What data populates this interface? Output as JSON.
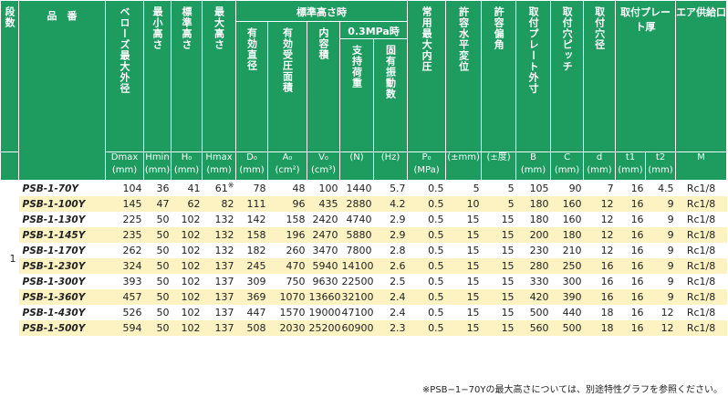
{
  "header": {
    "stage": "段数",
    "model": "品　番",
    "dmax": "ベローズ最大外径",
    "hmin": "最小高さ",
    "h0": "標準高さ",
    "hmax": "最大高さ",
    "std_group": "標準高さ時",
    "d0": "有効直径",
    "a0": "有効受圧面積",
    "v0": "内容積",
    "mpa_group": "0.3MPa時",
    "load": "支持荷重",
    "freq": "固有振動数",
    "pressure": "常用最大内圧",
    "h_disp": "許容水平変位",
    "angle": "許容偏角",
    "plate_outer": "取付プレート外寸",
    "pitch": "取付穴ピッチ",
    "hole": "取付穴径",
    "thickness": "取付プレート厚",
    "air": "エア供給口"
  },
  "units": {
    "dmax": [
      "Dmax",
      "(mm)"
    ],
    "hmin": [
      "Hmin",
      "(mm)"
    ],
    "h0": [
      "H₀",
      "(mm)"
    ],
    "hmax": [
      "Hmax",
      "(mm)"
    ],
    "d0": [
      "D₀",
      "(mm)"
    ],
    "a0": [
      "A₀",
      "(cm²)"
    ],
    "v0": [
      "V₀",
      "(cm³)"
    ],
    "load": [
      "",
      "(N)"
    ],
    "freq": [
      "",
      "(Hz)"
    ],
    "pressure": [
      "P₀",
      "(MPa)"
    ],
    "h_disp": [
      "",
      "(±mm)"
    ],
    "angle": [
      "",
      "(±度)"
    ],
    "plate_outer": [
      "B",
      "(mm)"
    ],
    "pitch": [
      "C",
      "(mm)"
    ],
    "hole": [
      "d",
      "(mm)"
    ],
    "t1": [
      "t1",
      "(mm)"
    ],
    "t2": [
      "t2",
      "(mm)"
    ],
    "air": [
      "",
      "M"
    ]
  },
  "stage_value": "1",
  "rows": [
    {
      "model": "PSB-1-70Y",
      "dmax": "104",
      "hmin": "36",
      "h0": "41",
      "hmax": "61",
      "hmax_mark": "※",
      "d0": "78",
      "a0": "48",
      "v0": "100",
      "load": "1440",
      "freq": "5.7",
      "p": "0.5",
      "hd": "5",
      "ang": "5",
      "b": "105",
      "c": "90",
      "d": "7",
      "t1": "16",
      "t2": "4.5",
      "m": "Rc1/8"
    },
    {
      "model": "PSB-1-100Y",
      "dmax": "145",
      "hmin": "47",
      "h0": "62",
      "hmax": "82",
      "hmax_mark": "",
      "d0": "111",
      "a0": "96",
      "v0": "435",
      "load": "2880",
      "freq": "4.2",
      "p": "0.5",
      "hd": "10",
      "ang": "5",
      "b": "180",
      "c": "160",
      "d": "12",
      "t1": "16",
      "t2": "9",
      "m": "Rc1/8"
    },
    {
      "model": "PSB-1-130Y",
      "dmax": "225",
      "hmin": "50",
      "h0": "102",
      "hmax": "132",
      "hmax_mark": "",
      "d0": "142",
      "a0": "158",
      "v0": "2420",
      "load": "4740",
      "freq": "2.9",
      "p": "0.5",
      "hd": "15",
      "ang": "15",
      "b": "180",
      "c": "160",
      "d": "12",
      "t1": "16",
      "t2": "9",
      "m": "Rc1/8"
    },
    {
      "model": "PSB-1-145Y",
      "dmax": "235",
      "hmin": "50",
      "h0": "102",
      "hmax": "132",
      "hmax_mark": "",
      "d0": "158",
      "a0": "196",
      "v0": "2470",
      "load": "5880",
      "freq": "2.9",
      "p": "0.5",
      "hd": "15",
      "ang": "15",
      "b": "200",
      "c": "180",
      "d": "12",
      "t1": "16",
      "t2": "9",
      "m": "Rc1/8"
    },
    {
      "model": "PSB-1-170Y",
      "dmax": "262",
      "hmin": "50",
      "h0": "102",
      "hmax": "132",
      "hmax_mark": "",
      "d0": "182",
      "a0": "260",
      "v0": "3470",
      "load": "7800",
      "freq": "2.8",
      "p": "0.5",
      "hd": "15",
      "ang": "15",
      "b": "230",
      "c": "210",
      "d": "12",
      "t1": "16",
      "t2": "9",
      "m": "Rc1/8"
    },
    {
      "model": "PSB-1-230Y",
      "dmax": "324",
      "hmin": "50",
      "h0": "102",
      "hmax": "137",
      "hmax_mark": "",
      "d0": "245",
      "a0": "470",
      "v0": "5940",
      "load": "14100",
      "freq": "2.6",
      "p": "0.5",
      "hd": "15",
      "ang": "15",
      "b": "280",
      "c": "250",
      "d": "16",
      "t1": "16",
      "t2": "9",
      "m": "Rc1/8"
    },
    {
      "model": "PSB-1-300Y",
      "dmax": "393",
      "hmin": "50",
      "h0": "102",
      "hmax": "137",
      "hmax_mark": "",
      "d0": "309",
      "a0": "750",
      "v0": "9630",
      "load": "22500",
      "freq": "2.5",
      "p": "0.5",
      "hd": "15",
      "ang": "15",
      "b": "330",
      "c": "300",
      "d": "16",
      "t1": "16",
      "t2": "9",
      "m": "Rc1/8"
    },
    {
      "model": "PSB-1-360Y",
      "dmax": "457",
      "hmin": "50",
      "h0": "102",
      "hmax": "137",
      "hmax_mark": "",
      "d0": "369",
      "a0": "1070",
      "v0": "13660",
      "load": "32100",
      "freq": "2.4",
      "p": "0.5",
      "hd": "15",
      "ang": "15",
      "b": "420",
      "c": "390",
      "d": "16",
      "t1": "16",
      "t2": "9",
      "m": "Rc1/8"
    },
    {
      "model": "PSB-1-430Y",
      "dmax": "526",
      "hmin": "50",
      "h0": "102",
      "hmax": "137",
      "hmax_mark": "",
      "d0": "447",
      "a0": "1570",
      "v0": "19000",
      "load": "47100",
      "freq": "2.4",
      "p": "0.5",
      "hd": "15",
      "ang": "15",
      "b": "500",
      "c": "440",
      "d": "18",
      "t1": "16",
      "t2": "12",
      "m": "Rc1/8"
    },
    {
      "model": "PSB-1-500Y",
      "dmax": "594",
      "hmin": "50",
      "h0": "102",
      "hmax": "137",
      "hmax_mark": "",
      "d0": "508",
      "a0": "2030",
      "v0": "25200",
      "load": "60900",
      "freq": "2.3",
      "p": "0.5",
      "hd": "15",
      "ang": "15",
      "b": "560",
      "c": "500",
      "d": "18",
      "t1": "16",
      "t2": "12",
      "m": "Rc1/8"
    }
  ],
  "note": "※PSB−1−70Yの最大高さについては、別途特性グラフを参照ください。",
  "colors": {
    "header_bg": "#1e9b5e",
    "stripe": "#fdf3c2"
  }
}
